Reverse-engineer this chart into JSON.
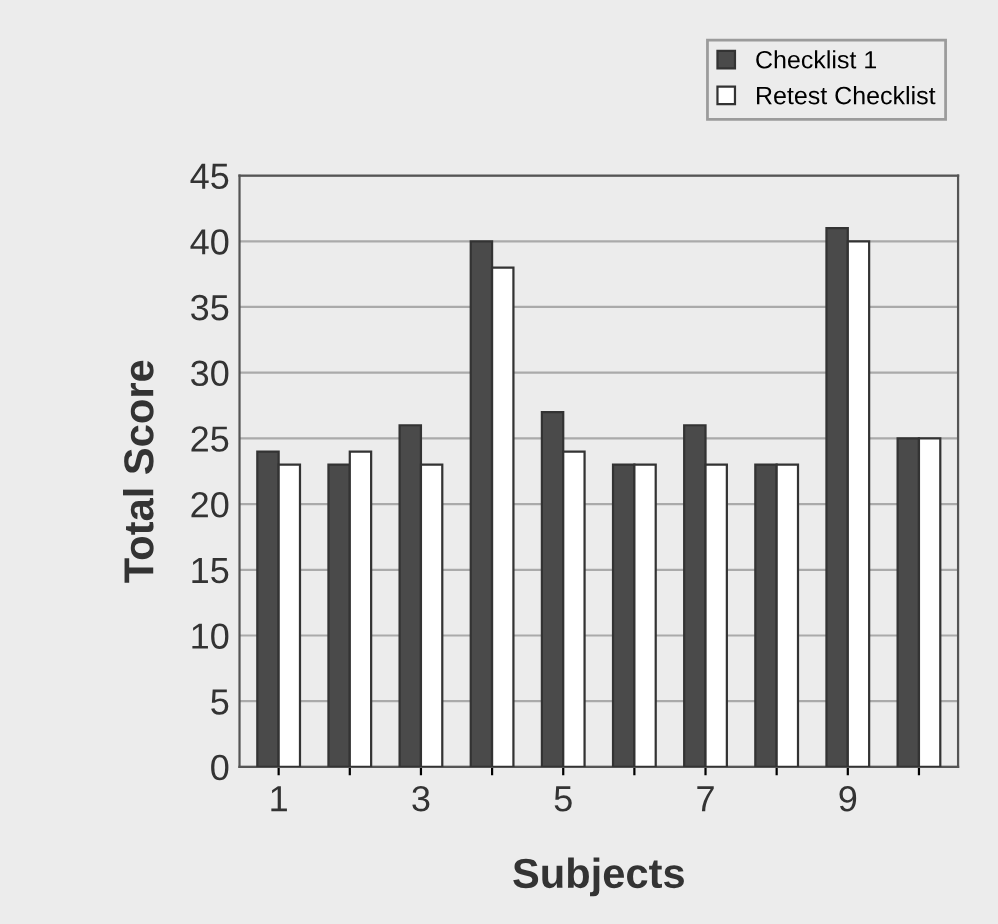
{
  "chart_data": {
    "type": "bar",
    "xlabel": "Subjects",
    "ylabel": "Total Score",
    "categories": [
      "1",
      null,
      "3",
      null,
      "5",
      null,
      "7",
      null,
      "9",
      null
    ],
    "series": [
      {
        "name": "Checklist 1",
        "color": "#4a4a4a",
        "values": [
          24,
          23,
          26,
          40,
          27,
          23,
          26,
          23,
          41,
          25
        ]
      },
      {
        "name": "Retest Checklist",
        "color": "#ffffff",
        "values": [
          23,
          24,
          23,
          38,
          24,
          23,
          23,
          23,
          40,
          25
        ]
      }
    ],
    "ylim": [
      0,
      45
    ],
    "yticks": [
      0,
      5,
      10,
      15,
      20,
      25,
      30,
      35,
      40,
      45
    ],
    "grid": "y",
    "legend": "top right"
  }
}
